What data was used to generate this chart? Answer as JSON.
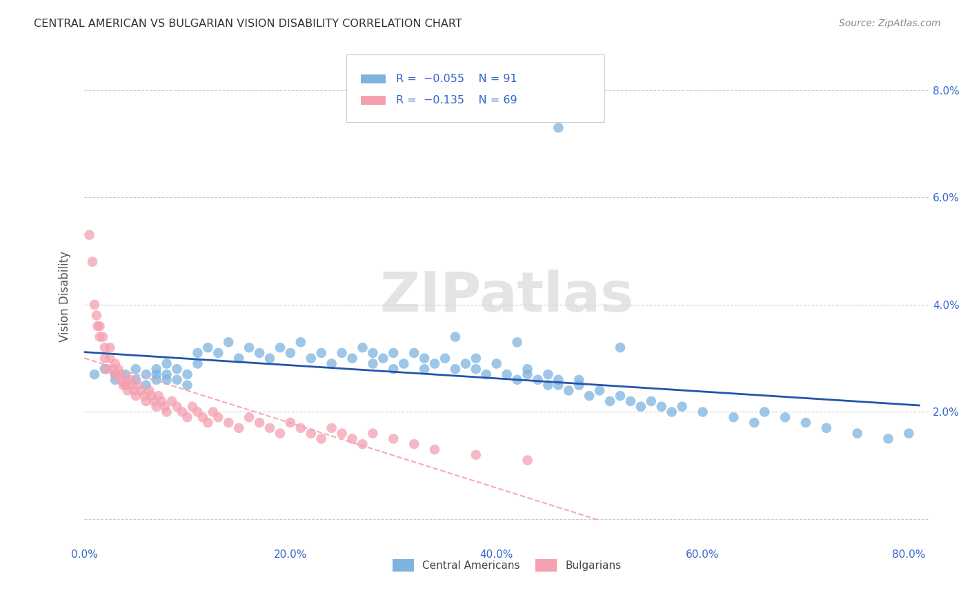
{
  "title": "CENTRAL AMERICAN VS BULGARIAN VISION DISABILITY CORRELATION CHART",
  "source": "Source: ZipAtlas.com",
  "ylabel": "Vision Disability",
  "xlim": [
    0.0,
    0.82
  ],
  "ylim": [
    -0.005,
    0.088
  ],
  "blue_color": "#7EB3E0",
  "pink_color": "#F4A0B0",
  "blue_line_color": "#2255AA",
  "pink_line_color": "#F4A0B0",
  "watermark": "ZIPatlas",
  "background_color": "#FFFFFF",
  "grid_color": "#CCCCCC",
  "title_color": "#333333",
  "axis_label_color": "#3366CC",
  "ca_x": [
    0.01,
    0.02,
    0.03,
    0.03,
    0.04,
    0.04,
    0.05,
    0.05,
    0.06,
    0.06,
    0.07,
    0.07,
    0.07,
    0.08,
    0.08,
    0.08,
    0.09,
    0.09,
    0.1,
    0.1,
    0.11,
    0.11,
    0.12,
    0.13,
    0.14,
    0.15,
    0.16,
    0.17,
    0.18,
    0.19,
    0.2,
    0.21,
    0.22,
    0.23,
    0.24,
    0.25,
    0.26,
    0.27,
    0.28,
    0.28,
    0.29,
    0.3,
    0.3,
    0.31,
    0.32,
    0.33,
    0.33,
    0.34,
    0.35,
    0.36,
    0.37,
    0.38,
    0.38,
    0.39,
    0.4,
    0.41,
    0.42,
    0.43,
    0.43,
    0.44,
    0.45,
    0.45,
    0.46,
    0.46,
    0.47,
    0.48,
    0.48,
    0.49,
    0.5,
    0.51,
    0.52,
    0.53,
    0.54,
    0.55,
    0.56,
    0.57,
    0.58,
    0.6,
    0.63,
    0.65,
    0.66,
    0.68,
    0.7,
    0.72,
    0.75,
    0.78,
    0.8,
    0.46,
    0.36,
    0.42,
    0.52
  ],
  "ca_y": [
    0.027,
    0.028,
    0.027,
    0.026,
    0.027,
    0.025,
    0.028,
    0.026,
    0.027,
    0.025,
    0.028,
    0.027,
    0.026,
    0.029,
    0.027,
    0.026,
    0.028,
    0.026,
    0.027,
    0.025,
    0.031,
    0.029,
    0.032,
    0.031,
    0.033,
    0.03,
    0.032,
    0.031,
    0.03,
    0.032,
    0.031,
    0.033,
    0.03,
    0.031,
    0.029,
    0.031,
    0.03,
    0.032,
    0.029,
    0.031,
    0.03,
    0.031,
    0.028,
    0.029,
    0.031,
    0.028,
    0.03,
    0.029,
    0.03,
    0.028,
    0.029,
    0.03,
    0.028,
    0.027,
    0.029,
    0.027,
    0.026,
    0.028,
    0.027,
    0.026,
    0.025,
    0.027,
    0.025,
    0.026,
    0.024,
    0.026,
    0.025,
    0.023,
    0.024,
    0.022,
    0.023,
    0.022,
    0.021,
    0.022,
    0.021,
    0.02,
    0.021,
    0.02,
    0.019,
    0.018,
    0.02,
    0.019,
    0.018,
    0.017,
    0.016,
    0.015,
    0.016,
    0.073,
    0.034,
    0.033,
    0.032
  ],
  "bg_x": [
    0.005,
    0.008,
    0.01,
    0.012,
    0.013,
    0.015,
    0.015,
    0.018,
    0.02,
    0.02,
    0.022,
    0.025,
    0.025,
    0.028,
    0.03,
    0.03,
    0.033,
    0.035,
    0.035,
    0.038,
    0.04,
    0.04,
    0.042,
    0.045,
    0.045,
    0.048,
    0.05,
    0.052,
    0.055,
    0.058,
    0.06,
    0.063,
    0.065,
    0.068,
    0.07,
    0.072,
    0.075,
    0.078,
    0.08,
    0.085,
    0.09,
    0.095,
    0.1,
    0.105,
    0.11,
    0.115,
    0.12,
    0.125,
    0.13,
    0.14,
    0.15,
    0.16,
    0.17,
    0.18,
    0.19,
    0.2,
    0.21,
    0.22,
    0.23,
    0.24,
    0.25,
    0.26,
    0.27,
    0.28,
    0.3,
    0.32,
    0.34,
    0.38,
    0.43
  ],
  "bg_y": [
    0.053,
    0.048,
    0.04,
    0.038,
    0.036,
    0.034,
    0.036,
    0.034,
    0.032,
    0.03,
    0.028,
    0.032,
    0.03,
    0.028,
    0.029,
    0.027,
    0.028,
    0.026,
    0.027,
    0.025,
    0.026,
    0.025,
    0.024,
    0.026,
    0.025,
    0.024,
    0.023,
    0.025,
    0.024,
    0.023,
    0.022,
    0.024,
    0.023,
    0.022,
    0.021,
    0.023,
    0.022,
    0.021,
    0.02,
    0.022,
    0.021,
    0.02,
    0.019,
    0.021,
    0.02,
    0.019,
    0.018,
    0.02,
    0.019,
    0.018,
    0.017,
    0.019,
    0.018,
    0.017,
    0.016,
    0.018,
    0.017,
    0.016,
    0.015,
    0.017,
    0.016,
    0.015,
    0.014,
    0.016,
    0.015,
    0.014,
    0.013,
    0.012,
    0.011
  ]
}
